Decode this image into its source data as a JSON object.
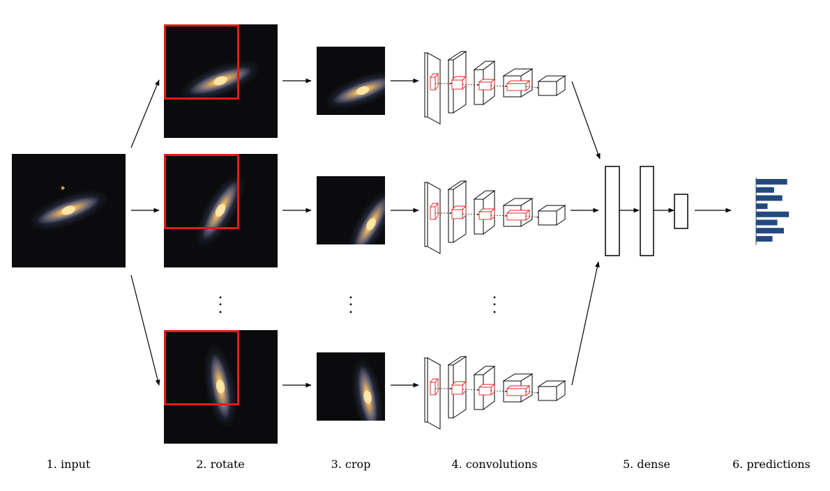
{
  "stages": [
    {
      "id": "input",
      "label": "1. input"
    },
    {
      "id": "rotate",
      "label": "2. rotate"
    },
    {
      "id": "crop",
      "label": "3. crop"
    },
    {
      "id": "convolutions",
      "label": "4. convolutions"
    },
    {
      "id": "dense",
      "label": "5. dense"
    },
    {
      "id": "predictions",
      "label": "6. predictions"
    }
  ],
  "rotations_deg": [
    -20,
    -60,
    -100
  ],
  "crop_highlight_color": "#e41a1a",
  "conv_highlight_color": "#e41a1a",
  "prediction_bar_color": "#24497e",
  "prediction_bars": [
    0.95,
    0.55,
    0.8,
    0.35,
    1.0,
    0.65,
    0.85,
    0.5
  ],
  "continuation_marker": "dots",
  "icons": {
    "arrow": "arrow-right-icon",
    "ellipsis": "vertical-ellipsis-icon"
  }
}
